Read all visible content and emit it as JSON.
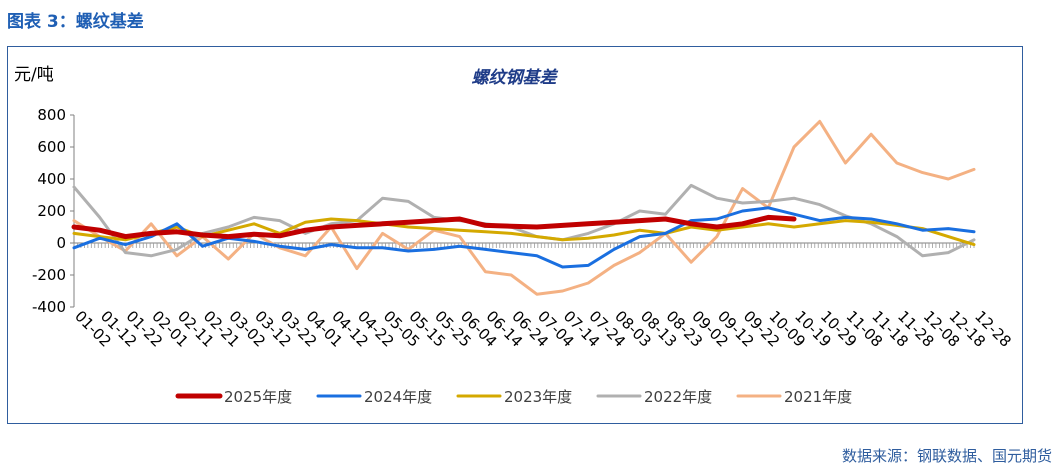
{
  "caption": "图表 3：螺纹基差",
  "source": "数据来源：钢联数据、国元期货",
  "chart_data": {
    "type": "line",
    "title": "螺纹钢基差",
    "ylabel": "元/吨",
    "xlabel": "",
    "ylim": [
      -400,
      800
    ],
    "yticks": [
      -400,
      -200,
      0,
      200,
      400,
      600,
      800
    ],
    "grid": false,
    "legend": "bottom",
    "x_tick_labels": [
      "01-02",
      "01-12",
      "01-22",
      "02-01",
      "02-11",
      "02-21",
      "03-02",
      "03-12",
      "03-22",
      "04-01",
      "04-12",
      "04-22",
      "05-05",
      "05-15",
      "05-25",
      "06-04",
      "06-14",
      "06-24",
      "07-04",
      "07-14",
      "07-24",
      "08-03",
      "08-13",
      "08-23",
      "09-02",
      "09-12",
      "09-22",
      "10-09",
      "10-19",
      "10-29",
      "11-08",
      "11-18",
      "11-28",
      "12-08",
      "12-18",
      "12-28"
    ],
    "series": [
      {
        "name": "2025年度",
        "color": "#c00000",
        "x": [
          "01-02",
          "01-12",
          "01-22",
          "02-01",
          "02-11",
          "02-21",
          "03-02",
          "03-12",
          "03-22",
          "04-01",
          "04-12",
          "04-22",
          "05-05",
          "05-15",
          "05-25",
          "06-04",
          "06-14",
          "06-24",
          "07-04",
          "07-14",
          "07-24",
          "08-03",
          "08-13",
          "08-23",
          "09-02",
          "09-12",
          "09-22",
          "10-09",
          "10-19"
        ],
        "values": [
          100,
          80,
          40,
          60,
          70,
          50,
          40,
          55,
          45,
          80,
          100,
          110,
          120,
          130,
          140,
          150,
          110,
          105,
          100,
          110,
          120,
          130,
          140,
          150,
          120,
          100,
          120,
          160,
          150
        ]
      },
      {
        "name": "2024年度",
        "color": "#1a6fe0",
        "x": [
          "01-02",
          "01-12",
          "01-22",
          "02-01",
          "02-11",
          "02-21",
          "03-02",
          "03-12",
          "03-22",
          "04-01",
          "04-12",
          "04-22",
          "05-05",
          "05-15",
          "05-25",
          "06-04",
          "06-14",
          "06-24",
          "07-04",
          "07-14",
          "07-24",
          "08-03",
          "08-13",
          "08-23",
          "09-02",
          "09-12",
          "09-22",
          "10-09",
          "10-19",
          "10-29",
          "11-08",
          "11-18",
          "11-28",
          "12-08",
          "12-18",
          "12-28"
        ],
        "values": [
          -30,
          30,
          -10,
          40,
          120,
          -20,
          30,
          10,
          -20,
          -40,
          -10,
          -30,
          -30,
          -50,
          -40,
          -20,
          -40,
          -60,
          -80,
          -150,
          -140,
          -40,
          40,
          60,
          140,
          150,
          200,
          220,
          180,
          140,
          160,
          150,
          120,
          80,
          90,
          70
        ]
      },
      {
        "name": "2023年度",
        "color": "#d4a900",
        "x": [
          "01-02",
          "01-12",
          "01-22",
          "02-01",
          "02-11",
          "02-21",
          "03-02",
          "03-12",
          "03-22",
          "04-01",
          "04-12",
          "04-22",
          "05-05",
          "05-15",
          "05-25",
          "06-04",
          "06-14",
          "06-24",
          "07-04",
          "07-14",
          "07-24",
          "08-03",
          "08-13",
          "08-23",
          "09-02",
          "09-12",
          "09-22",
          "10-09",
          "10-19",
          "10-29",
          "11-08",
          "11-18",
          "11-28",
          "12-08",
          "12-18",
          "12-28"
        ],
        "values": [
          60,
          40,
          20,
          60,
          100,
          40,
          80,
          120,
          60,
          130,
          150,
          140,
          120,
          100,
          90,
          80,
          70,
          60,
          40,
          20,
          30,
          50,
          80,
          60,
          100,
          80,
          100,
          120,
          100,
          120,
          140,
          130,
          110,
          90,
          40,
          -10
        ]
      },
      {
        "name": "2022年度",
        "color": "#b0b0b0",
        "x": [
          "01-02",
          "01-12",
          "01-22",
          "02-01",
          "02-11",
          "02-21",
          "03-02",
          "03-12",
          "03-22",
          "04-01",
          "04-12",
          "04-22",
          "05-05",
          "05-15",
          "05-25",
          "06-04",
          "06-14",
          "06-24",
          "07-04",
          "07-14",
          "07-24",
          "08-03",
          "08-13",
          "08-23",
          "09-02",
          "09-12",
          "09-22",
          "10-09",
          "10-19",
          "10-29",
          "11-08",
          "11-18",
          "11-28",
          "12-08",
          "12-18",
          "12-28"
        ],
        "values": [
          350,
          160,
          -60,
          -80,
          -40,
          60,
          100,
          160,
          140,
          60,
          120,
          140,
          280,
          260,
          160,
          140,
          120,
          100,
          40,
          20,
          60,
          120,
          200,
          180,
          360,
          280,
          250,
          260,
          280,
          240,
          170,
          120,
          40,
          -80,
          -60,
          20
        ]
      },
      {
        "name": "2021年度",
        "color": "#f4b183",
        "x": [
          "01-02",
          "01-12",
          "01-22",
          "02-01",
          "02-11",
          "02-21",
          "03-02",
          "03-12",
          "03-22",
          "04-01",
          "04-12",
          "04-22",
          "05-05",
          "05-15",
          "05-25",
          "06-04",
          "06-14",
          "06-24",
          "07-04",
          "07-14",
          "07-24",
          "08-03",
          "08-13",
          "08-23",
          "09-02",
          "09-12",
          "09-22",
          "10-09",
          "10-19",
          "10-29",
          "11-08",
          "11-18",
          "11-28",
          "12-08",
          "12-18",
          "12-28"
        ],
        "values": [
          140,
          40,
          -50,
          120,
          -80,
          40,
          -100,
          60,
          -30,
          -80,
          100,
          -160,
          60,
          -40,
          80,
          40,
          -180,
          -200,
          -320,
          -300,
          -250,
          -140,
          -60,
          60,
          -120,
          40,
          340,
          220,
          600,
          760,
          500,
          680,
          500,
          440,
          400,
          460
        ]
      }
    ]
  }
}
